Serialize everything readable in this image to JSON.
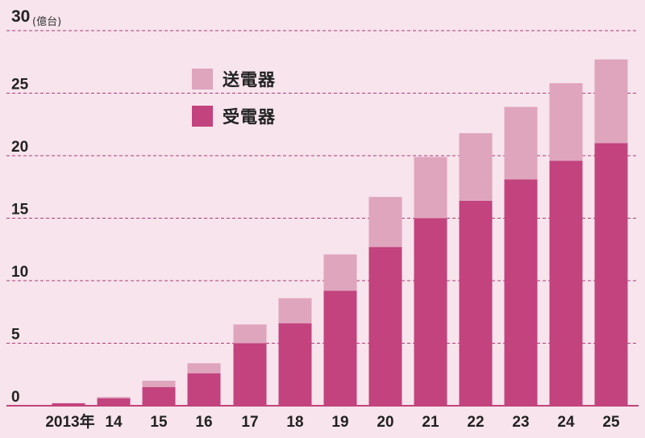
{
  "chart_data": {
    "type": "bar",
    "stacked": true,
    "unit": "(億台)",
    "categories": [
      "2013年",
      "14",
      "15",
      "16",
      "17",
      "18",
      "19",
      "20",
      "21",
      "22",
      "23",
      "24",
      "25"
    ],
    "series": [
      {
        "name": "受電器",
        "values": [
          0.2,
          0.6,
          1.5,
          2.6,
          5.0,
          6.6,
          9.2,
          12.7,
          15.0,
          16.4,
          18.1,
          19.6,
          21.0
        ],
        "color": "#c2437d"
      },
      {
        "name": "送電器",
        "values": [
          0.0,
          0.1,
          0.5,
          0.8,
          1.5,
          2.0,
          2.9,
          4.0,
          4.9,
          5.4,
          5.8,
          6.2,
          6.7
        ],
        "color": "#dfa5bd"
      }
    ],
    "yticks": [
      "0",
      "5",
      "10",
      "15",
      "20",
      "25",
      "30"
    ],
    "ylim": [
      0,
      30
    ],
    "grid": true,
    "legend": [
      "送電器",
      "受電器"
    ],
    "legend_position": "top-left"
  }
}
